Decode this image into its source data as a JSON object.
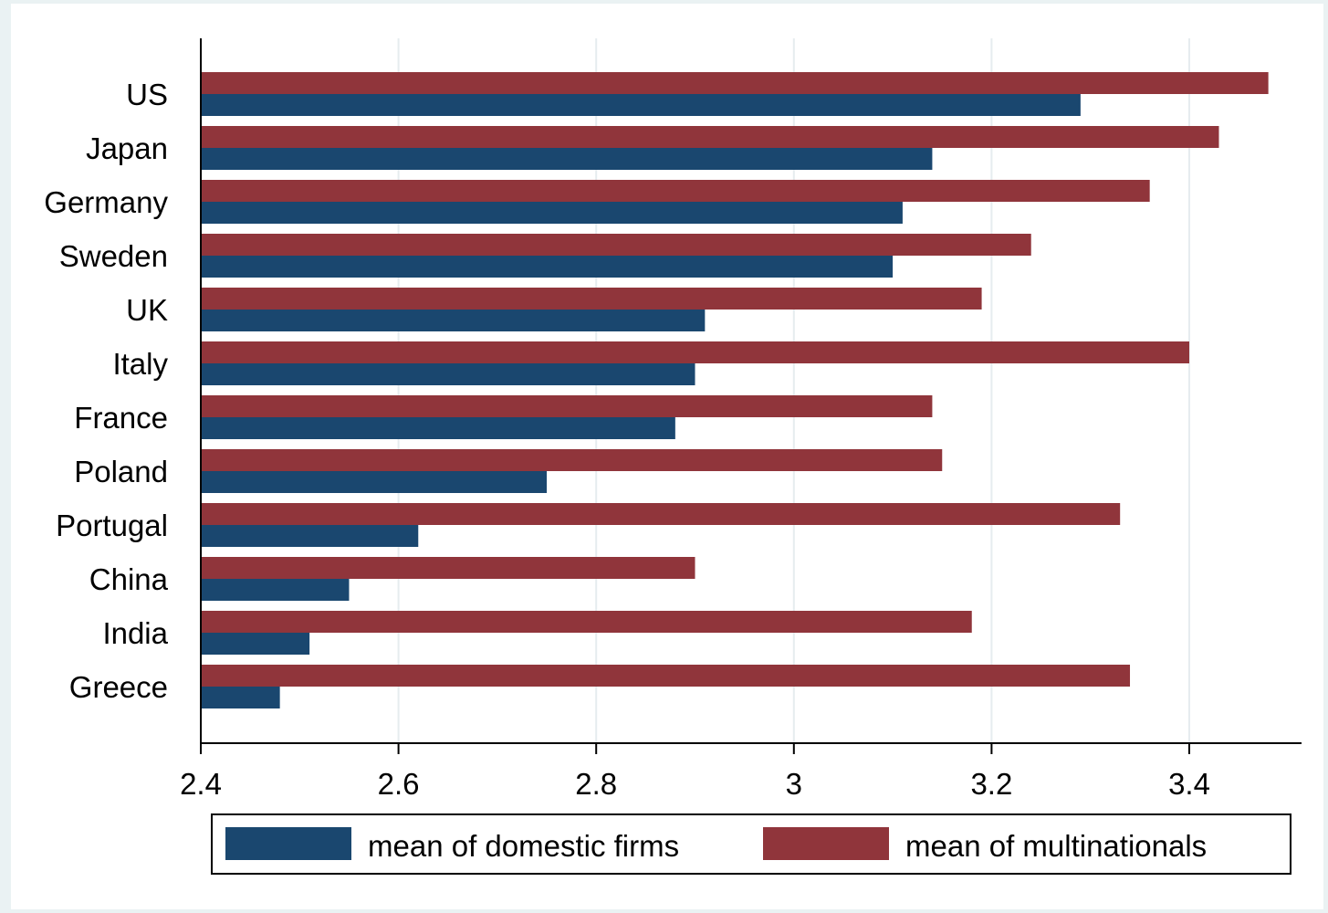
{
  "chart_data": {
    "type": "bar",
    "orientation": "horizontal",
    "categories": [
      "US",
      "Japan",
      "Germany",
      "Sweden",
      "UK",
      "Italy",
      "France",
      "Poland",
      "Portugal",
      "China",
      "India",
      "Greece"
    ],
    "series": [
      {
        "name": "mean of multinationals",
        "color": "#90353b",
        "values": [
          3.48,
          3.43,
          3.36,
          3.24,
          3.19,
          3.4,
          3.14,
          3.15,
          3.33,
          2.9,
          3.18,
          3.34
        ]
      },
      {
        "name": "mean of domestic firms",
        "color": "#1a476f",
        "values": [
          3.29,
          3.14,
          3.11,
          3.1,
          2.91,
          2.9,
          2.88,
          2.75,
          2.62,
          2.55,
          2.51,
          2.48
        ]
      }
    ],
    "xlim": [
      2.4,
      3.51
    ],
    "xticks": [
      2.4,
      2.6,
      2.8,
      3,
      3.2,
      3.4
    ],
    "xtick_labels": [
      "2.4",
      "2.6",
      "2.8",
      "3",
      "3.2",
      "3.4"
    ],
    "title": "",
    "xlabel": "",
    "ylabel": "",
    "grid": true,
    "legend": {
      "position": "bottom",
      "entries": [
        {
          "label": "mean of domestic firms",
          "color": "#1a476f"
        },
        {
          "label": "mean of multinationals",
          "color": "#90353b"
        }
      ]
    }
  }
}
